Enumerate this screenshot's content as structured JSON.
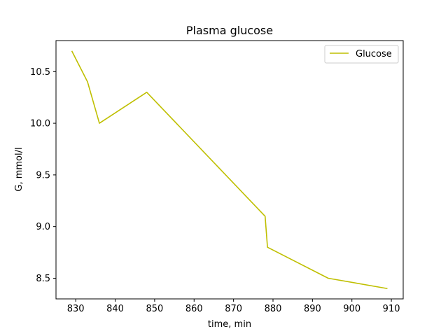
{
  "chart_data": {
    "type": "line",
    "title": "Plasma glucose",
    "xlabel": "time, min",
    "ylabel": "G, mmol/l",
    "xlim": [
      825.0,
      913.0
    ],
    "ylim": [
      8.3,
      10.8
    ],
    "xticks": [
      830,
      840,
      850,
      860,
      870,
      880,
      890,
      900,
      910
    ],
    "yticks": [
      8.5,
      9.0,
      9.5,
      10.0,
      10.5
    ],
    "xtick_labels": [
      "830",
      "840",
      "850",
      "860",
      "870",
      "880",
      "890",
      "900",
      "910"
    ],
    "ytick_labels": [
      "8.5",
      "9.0",
      "9.5",
      "10.0",
      "10.5"
    ],
    "grid": false,
    "legend_position": "top-right",
    "series": [
      {
        "name": "Glucose",
        "color": "#bfbf00",
        "x": [
          829,
          833,
          836,
          848,
          878,
          878.6,
          894,
          909
        ],
        "y": [
          10.7,
          10.4,
          10.0,
          10.3,
          9.1,
          8.8,
          8.5,
          8.4
        ]
      }
    ]
  }
}
